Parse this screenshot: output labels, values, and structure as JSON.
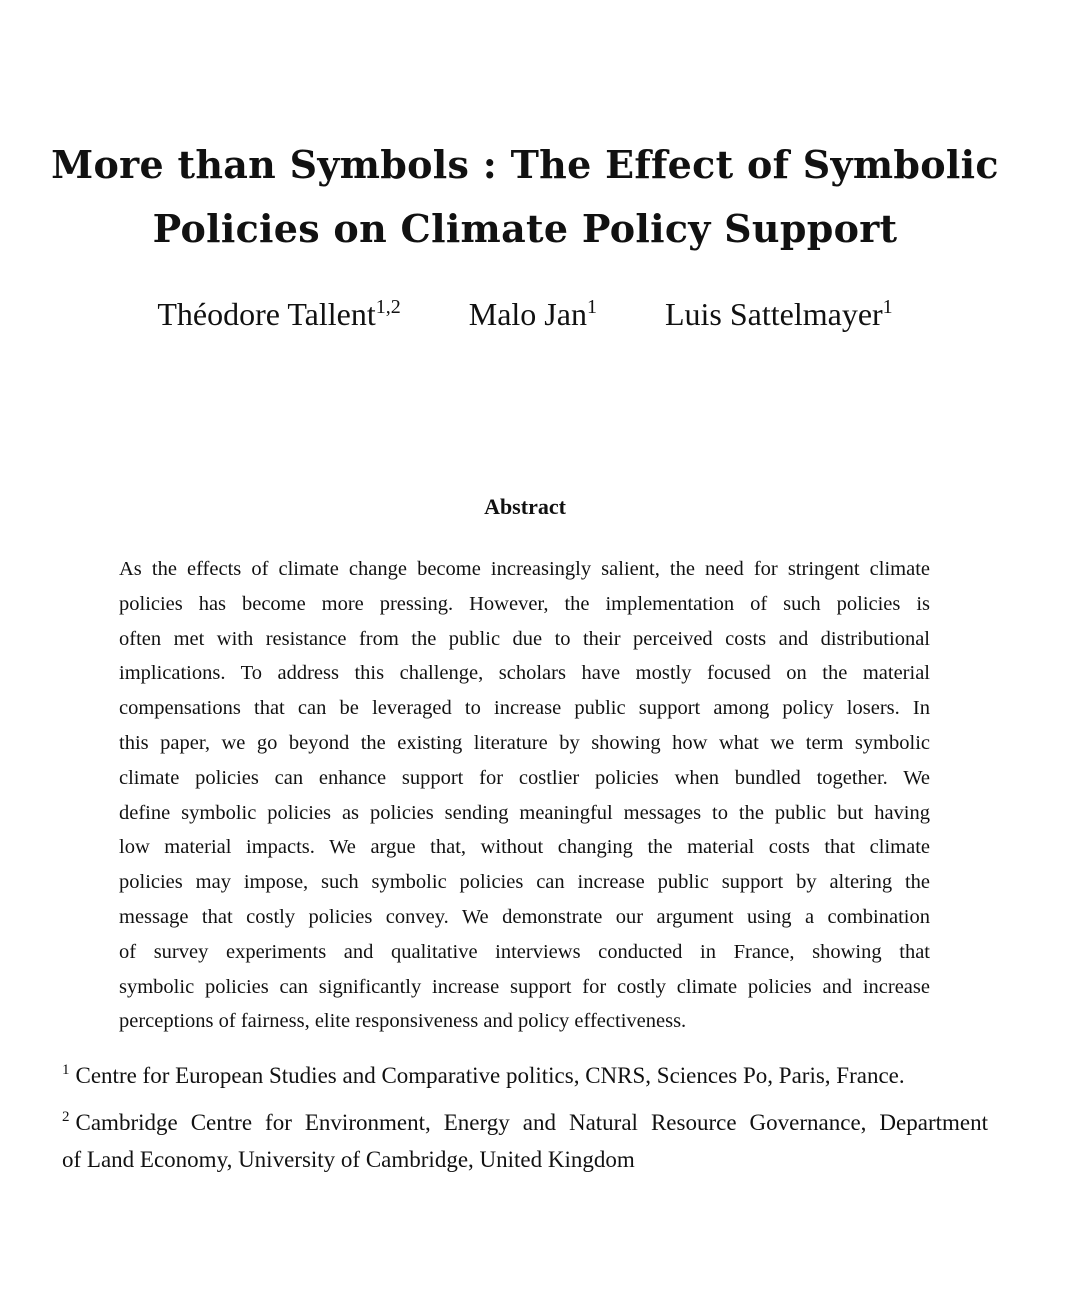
{
  "title": {
    "line1": "More than Symbols : The Effect of Symbolic",
    "line2": "Policies on Climate Policy Support"
  },
  "authors": [
    {
      "name": "Théodore Tallent",
      "affil": "1,2"
    },
    {
      "name": "Malo Jan",
      "affil": "1"
    },
    {
      "name": "Luis Sattelmayer",
      "affil": "1"
    }
  ],
  "abstract": {
    "heading": "Abstract",
    "lines": [
      "As the effects of climate change become increasingly salient, the need for stringent climate",
      "policies has become more pressing. However, the implementation of such policies is",
      "often met with resistance from the public due to their perceived costs and distributional",
      "implications. To address this challenge, scholars have mostly focused on the material",
      "compensations that can be leveraged to increase public support among policy losers. In",
      "this paper, we go beyond the existing literature by showing how what we term symbolic",
      "climate policies can enhance support for costlier policies when bundled together. We",
      "define symbolic policies as policies sending meaningful messages to the public but having",
      "low material impacts. We argue that, without changing the material costs that climate",
      "policies may impose, such symbolic policies can increase public support by altering the",
      "message that costly policies convey. We demonstrate our argument using a combination",
      "of survey experiments and qualitative interviews conducted in France, showing that",
      "symbolic policies can significantly increase support for costly climate policies and increase",
      "perceptions of fairness, elite responsiveness and policy effectiveness."
    ]
  },
  "footnotes": [
    {
      "mark": "1",
      "text": "Centre for European Studies and Comparative politics, CNRS, Sciences Po, Paris, France."
    },
    {
      "mark": "2",
      "line1": "Cambridge Centre for Environment, Energy and Natural Resource Governance, Department",
      "line2": "of Land Economy, University of Cambridge, United Kingdom"
    }
  ]
}
